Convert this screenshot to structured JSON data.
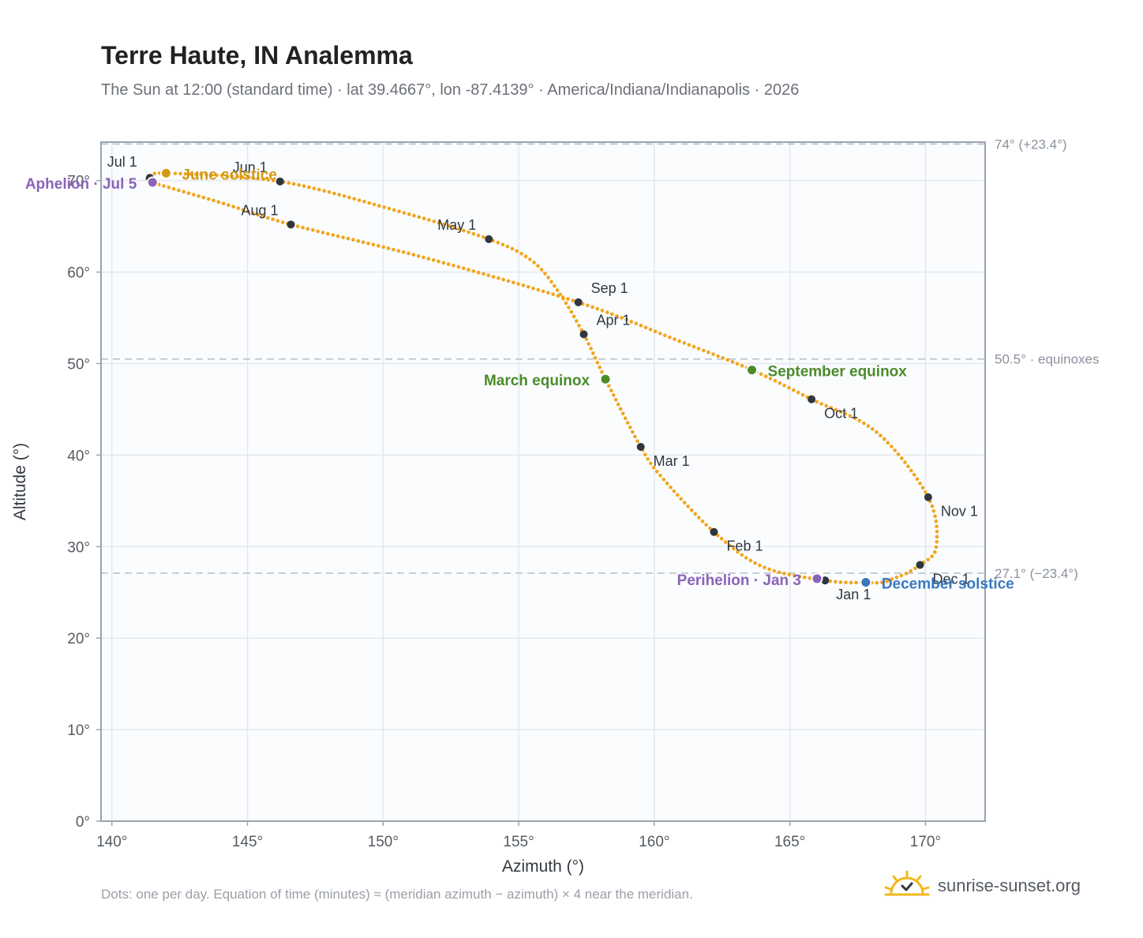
{
  "title": "Terre Haute, IN Analemma",
  "subtitle": "The Sun at 12:00 (standard time) · lat 39.4667°, lon -87.4139° · America/Indiana/Indianapolis · 2026",
  "footnote": "Dots: one per day. Equation of time (minutes) ≈ (meridian azimuth − azimuth) × 4 near the meridian.",
  "brand": "sunrise-sunset.org",
  "colors": {
    "curve": "#f2a51d",
    "month_dot": "#2f3640",
    "equinox": "#4a8c2a",
    "june_solstice": "#d39a12",
    "december_solstice": "#3a78be",
    "apsis": "#8b63b8",
    "reference_line": "#b4bec8",
    "plot_background": "#fafcfe",
    "grid": "#e4e8ee",
    "axis_frame": "#9aa3ae",
    "brand_sun": "#f2b81d"
  },
  "chart_data": {
    "type": "scatter",
    "xlabel": "Azimuth (°)",
    "ylabel": "Altitude (°)",
    "xlim": [
      139.6,
      172.2
    ],
    "ylim": [
      0,
      74.2
    ],
    "x_ticks": [
      140,
      145,
      150,
      155,
      160,
      165,
      170
    ],
    "x_tick_labels": [
      "140°",
      "145°",
      "150°",
      "155°",
      "160°",
      "165°",
      "170°"
    ],
    "y_ticks": [
      0,
      10,
      20,
      30,
      40,
      50,
      60,
      70
    ],
    "y_tick_labels": [
      "0°",
      "10°",
      "20°",
      "30°",
      "40°",
      "50°",
      "60°",
      "70°"
    ],
    "grid": true,
    "reference_lines": [
      {
        "y": 74.0,
        "label": "74° (+23.4°)"
      },
      {
        "y": 50.5,
        "label": "50.5° · equinoxes"
      },
      {
        "y": 27.1,
        "label": "27.1° (−23.4°)"
      }
    ],
    "daily_path": {
      "description_points": "anchor points of the daily sun position (azimuth, altitude)",
      "points": [
        [
          166.3,
          26.3
        ],
        [
          164.0,
          27.8
        ],
        [
          162.2,
          31.6
        ],
        [
          160.3,
          37.5
        ],
        [
          159.5,
          40.9
        ],
        [
          158.2,
          48.3
        ],
        [
          157.4,
          53.2
        ],
        [
          156.5,
          57.7
        ],
        [
          155.5,
          61.2
        ],
        [
          153.9,
          63.6
        ],
        [
          150.5,
          66.7
        ],
        [
          146.2,
          69.9
        ],
        [
          142.0,
          70.8
        ],
        [
          141.4,
          70.3
        ],
        [
          141.5,
          69.8
        ],
        [
          144.0,
          67.6
        ],
        [
          146.6,
          65.2
        ],
        [
          151.5,
          61.6
        ],
        [
          157.2,
          56.7
        ],
        [
          160.8,
          52.6
        ],
        [
          163.6,
          49.3
        ],
        [
          165.8,
          46.1
        ],
        [
          168.2,
          42.5
        ],
        [
          170.1,
          35.4
        ],
        [
          170.4,
          30.0
        ],
        [
          169.8,
          28.0
        ],
        [
          168.9,
          26.6
        ],
        [
          167.8,
          26.1
        ],
        [
          166.3,
          26.3
        ]
      ],
      "dots_per_day": 1,
      "day_count": 365
    },
    "month_markers": [
      {
        "label": "Jan 1",
        "x": 166.3,
        "y": 26.3
      },
      {
        "label": "Feb 1",
        "x": 162.2,
        "y": 31.6
      },
      {
        "label": "Mar 1",
        "x": 159.5,
        "y": 40.9
      },
      {
        "label": "Apr 1",
        "x": 157.4,
        "y": 53.2
      },
      {
        "label": "May 1",
        "x": 153.9,
        "y": 63.6
      },
      {
        "label": "Jun 1",
        "x": 146.2,
        "y": 69.9
      },
      {
        "label": "Jul 1",
        "x": 141.4,
        "y": 70.3
      },
      {
        "label": "Aug 1",
        "x": 146.6,
        "y": 65.2
      },
      {
        "label": "Sep 1",
        "x": 157.2,
        "y": 56.7
      },
      {
        "label": "Oct 1",
        "x": 165.8,
        "y": 46.1
      },
      {
        "label": "Nov 1",
        "x": 170.1,
        "y": 35.4
      },
      {
        "label": "Dec 1",
        "x": 169.8,
        "y": 28.0
      }
    ],
    "events": [
      {
        "label": "March equinox",
        "x": 158.2,
        "y": 48.3,
        "color_key": "equinox",
        "side": "left"
      },
      {
        "label": "September equinox",
        "x": 163.6,
        "y": 49.3,
        "color_key": "equinox",
        "side": "right"
      },
      {
        "label": "June solstice",
        "x": 142.0,
        "y": 70.8,
        "color_key": "june_solstice",
        "side": "right"
      },
      {
        "label": "December solstice",
        "x": 167.8,
        "y": 26.1,
        "color_key": "december_solstice",
        "side": "right"
      },
      {
        "label": "Aphelion · Jul 5",
        "x": 141.5,
        "y": 69.8,
        "color_key": "apsis",
        "side": "left"
      },
      {
        "label": "Perihelion · Jan 3",
        "x": 166.0,
        "y": 26.5,
        "color_key": "apsis",
        "side": "left"
      }
    ]
  }
}
